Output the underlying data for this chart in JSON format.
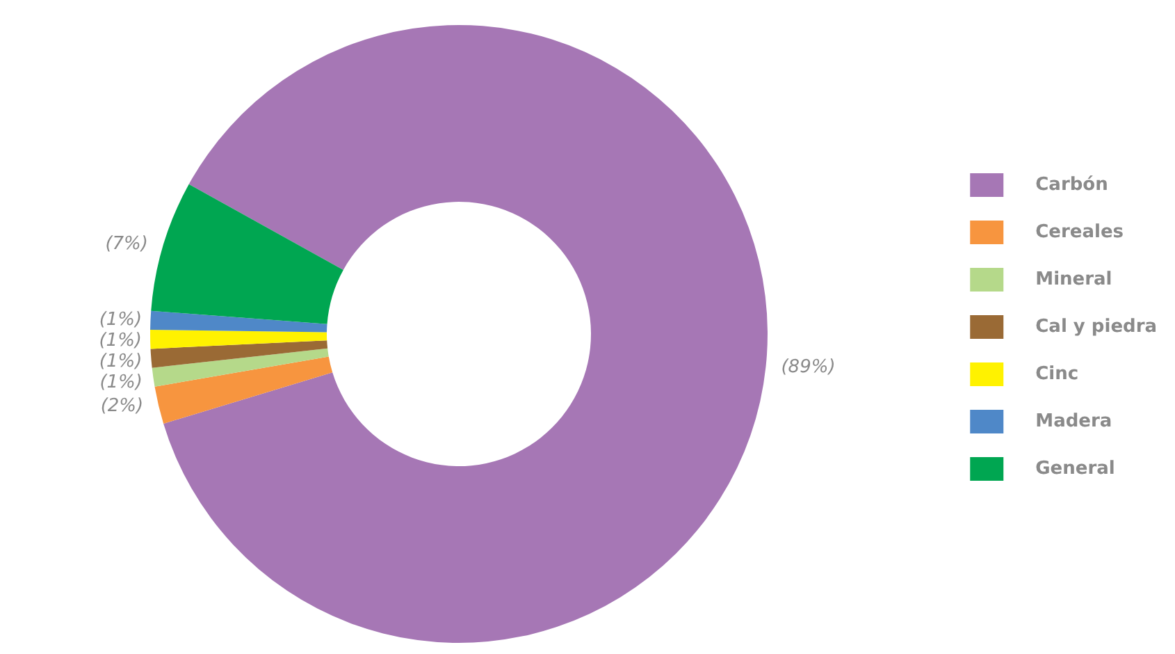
{
  "chart_data": {
    "type": "donut",
    "categories": [
      "Carbón",
      "Cereales",
      "Mineral",
      "Cal y piedra",
      "Cinc",
      "Madera",
      "General"
    ],
    "values": [
      89,
      2,
      1,
      1,
      1,
      1,
      7
    ],
    "colors": [
      "#a677b5",
      "#f7953f",
      "#b5d98a",
      "#9a6a35",
      "#fff200",
      "#4f88c8",
      "#00a651"
    ],
    "value_labels": [
      "(89%)",
      "(2%)",
      "(1%)",
      "(1%)",
      "(1%)",
      "(1%)",
      "(7%)"
    ],
    "legend": "right"
  }
}
